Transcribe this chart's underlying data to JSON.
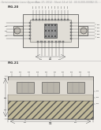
{
  "page_bg": "#f2f0ec",
  "line_color": "#444444",
  "dark_fill": "#777777",
  "mid_fill": "#aaaaaa",
  "light_fill": "#dddddd",
  "hatch_fill": "#cccccc",
  "white": "#ffffff",
  "fig20_label": "FIG.20",
  "fig21_label": "FIG.21",
  "header_left": "Semiconductor Laser Apparatus",
  "header_mid": "Nov. 27, 2012",
  "header_right": "US 8,000,000B2 C1",
  "fs_header": 2.2,
  "fs_label": 2.8,
  "fs_ref": 1.9
}
